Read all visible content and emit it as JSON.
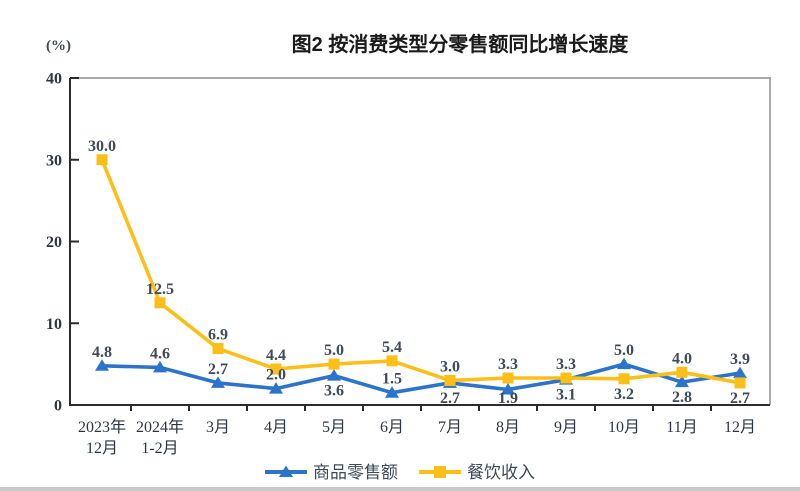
{
  "chart_data": {
    "type": "line",
    "title": "图2 按消费类型分零售额同比增长速度",
    "unit": "(%)",
    "categories": [
      [
        "2023年",
        "12月"
      ],
      [
        "2024年",
        "1-2月"
      ],
      [
        "3月"
      ],
      [
        "4月"
      ],
      [
        "5月"
      ],
      [
        "6月"
      ],
      [
        "7月"
      ],
      [
        "8月"
      ],
      [
        "9月"
      ],
      [
        "10月"
      ],
      [
        "11月"
      ],
      [
        "12月"
      ]
    ],
    "ylim": [
      0,
      40
    ],
    "yticks": [
      0,
      10,
      20,
      30,
      40
    ],
    "grid": false,
    "legend_position": "bottom",
    "series": [
      {
        "id": "goods-retail",
        "name": "商品零售额",
        "marker": "triangle",
        "color": "#2B73CB",
        "values": [
          4.8,
          4.6,
          2.7,
          2.0,
          3.6,
          1.5,
          2.7,
          1.9,
          3.1,
          5.0,
          2.8,
          3.9
        ],
        "label_positions": [
          "above",
          "above",
          "above",
          "above",
          "below",
          "above",
          "below",
          "below",
          "below",
          "above",
          "below",
          "above"
        ]
      },
      {
        "id": "catering-income",
        "name": "餐饮收入",
        "marker": "square",
        "color": "#FBBF17",
        "values": [
          30.0,
          12.5,
          6.9,
          4.4,
          5.0,
          5.4,
          3.0,
          3.3,
          3.3,
          3.2,
          4.0,
          2.7
        ],
        "label_positions": [
          "above",
          "above",
          "above",
          "above",
          "above",
          "above",
          "above",
          "above",
          "above",
          "below",
          "above",
          "below"
        ]
      }
    ],
    "colors": {
      "title": "#1a1a1a",
      "data_label": "#3E4A59",
      "tick_label": "#2c3642",
      "axis": "#2b2b2b",
      "plot_border": "#a9a9a9"
    }
  }
}
